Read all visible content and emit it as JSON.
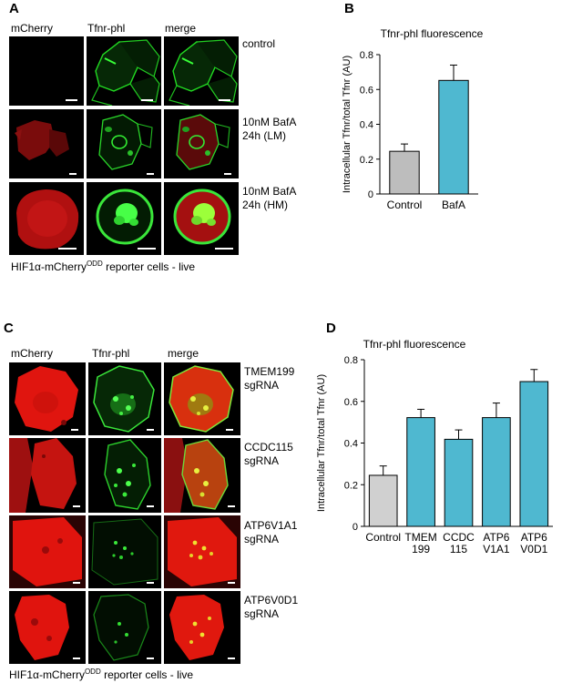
{
  "panelA": {
    "label": "A",
    "headers": [
      "mCherry",
      "Tfnr-phl",
      "merge"
    ],
    "conditions": [
      "control",
      "10nM BafA\n24h (LM)",
      "10nM BafA\n24h (HM)"
    ],
    "footnote_pre": "HIF1α-mCherry",
    "footnote_sup": "ODD",
    "footnote_post": " reporter cells - live"
  },
  "panelB": {
    "label": "B",
    "colors": {
      "control": "#bdbdbd",
      "treatment": "#4fb8d0"
    },
    "chart_data": {
      "type": "bar",
      "title": "Tfnr-phl fluorescence",
      "ylabel": "Intracellular Tfnr/total Tfnr (AU)",
      "categories": [
        "Control",
        "BafA"
      ],
      "values": [
        0.245,
        0.652
      ],
      "errors": [
        0.042,
        0.088
      ],
      "ylim": [
        0,
        0.8
      ],
      "yticks": [
        0,
        0.2,
        0.4,
        0.6,
        0.8
      ],
      "yticklabels": [
        "0",
        "0.2",
        "0.4",
        "0.6",
        "0.8"
      ]
    }
  },
  "panelC": {
    "label": "C",
    "headers": [
      "mCherry",
      "Tfnr-phl",
      "merge"
    ],
    "conditions": [
      "TMEM199\nsgRNA",
      "CCDC115\nsgRNA",
      "ATP6V1A1\nsgRNA",
      "ATP6V0D1\nsgRNA"
    ],
    "footnote_pre": "HIF1α-mCherry",
    "footnote_sup": "ODD",
    "footnote_post": " reporter cells - live"
  },
  "panelD": {
    "label": "D",
    "colors": {
      "control": "#d0d0d0",
      "treatment": "#4fb8d0"
    },
    "chart_data": {
      "type": "bar",
      "title": "Tfnr-phl fluorescence",
      "ylabel": "Intracellular Tfnr/total Tfnr (AU)",
      "categories": [
        "Control",
        "TMEM\n199",
        "CCDC\n115",
        "ATP6\nV1A1",
        "ATP6\nV0D1"
      ],
      "values": [
        0.245,
        0.522,
        0.418,
        0.522,
        0.695
      ],
      "errors": [
        0.045,
        0.04,
        0.045,
        0.07,
        0.058
      ],
      "ylim": [
        0,
        0.8
      ],
      "yticks": [
        0,
        0.2,
        0.4,
        0.6,
        0.8
      ],
      "yticklabels": [
        "0",
        "0.2",
        "0.4",
        "0.6",
        "0.8"
      ]
    }
  }
}
